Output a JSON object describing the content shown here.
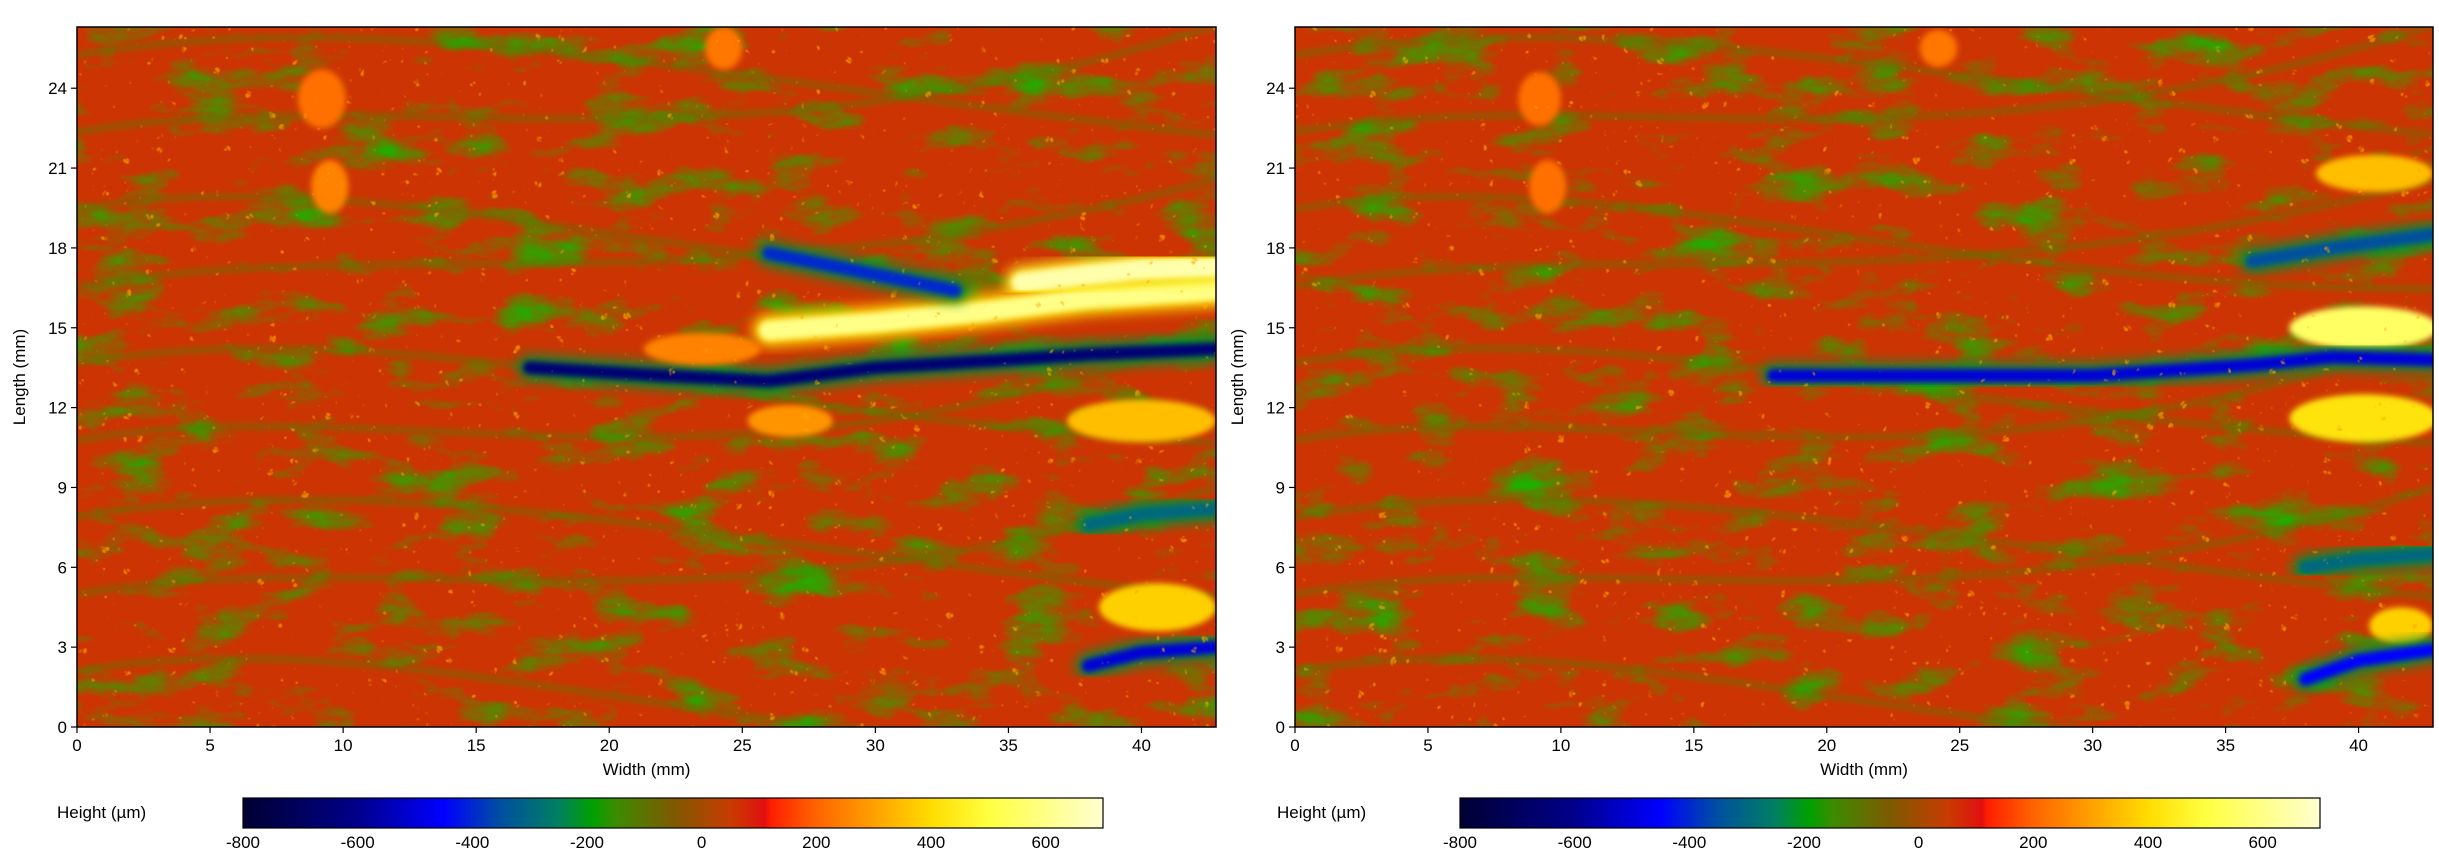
{
  "chart_data": [
    {
      "type": "heatmap",
      "title": "",
      "xlabel": "Width  (mm)",
      "ylabel": "Length  (mm)",
      "xlim": [
        0,
        42.8
      ],
      "ylim": [
        0,
        26.3
      ],
      "x_ticks": [
        0,
        5,
        10,
        15,
        20,
        25,
        30,
        35,
        40
      ],
      "y_ticks": [
        0,
        3,
        6,
        9,
        12,
        15,
        18,
        21,
        24
      ],
      "colorbar": {
        "label": "Height  (µm)",
        "range": [
          -800,
          700
        ],
        "ticks": [
          -800,
          -600,
          -400,
          -200,
          0,
          200,
          400,
          600
        ]
      },
      "features": [
        {
          "kind": "ridge_high",
          "points": [
            [
              26,
              14.9
            ],
            [
              30,
              15.2
            ],
            [
              34,
              15.6
            ],
            [
              38,
              16.1
            ],
            [
              42.8,
              16.4
            ]
          ],
          "value": 600
        },
        {
          "kind": "ridge_high",
          "points": [
            [
              35.5,
              16.7
            ],
            [
              38,
              17.0
            ],
            [
              40,
              17.2
            ],
            [
              42.8,
              17.3
            ]
          ],
          "value": 650
        },
        {
          "kind": "groove_low",
          "points": [
            [
              17,
              13.5
            ],
            [
              22,
              13.2
            ],
            [
              26,
              13.0
            ],
            [
              30,
              13.5
            ],
            [
              35,
              13.8
            ],
            [
              38,
              14.0
            ],
            [
              42.8,
              14.2
            ]
          ],
          "value": -650
        },
        {
          "kind": "groove_low",
          "points": [
            [
              26,
              17.8
            ],
            [
              30,
              17.0
            ],
            [
              33,
              16.4
            ]
          ],
          "value": -400
        },
        {
          "kind": "groove_low",
          "points": [
            [
              38,
              2.3
            ],
            [
              40,
              2.8
            ],
            [
              42.8,
              3.0
            ]
          ],
          "value": -500
        },
        {
          "kind": "groove_low",
          "points": [
            [
              38,
              7.6
            ],
            [
              40,
              8.0
            ],
            [
              42.8,
              8.2
            ]
          ],
          "value": -300
        },
        {
          "kind": "patch_high",
          "x": 23.5,
          "y": 14.2,
          "rx": 2.2,
          "ry": 0.6,
          "value": 250
        },
        {
          "kind": "patch_high",
          "x": 26.8,
          "y": 11.5,
          "rx": 1.6,
          "ry": 0.6,
          "value": 280
        },
        {
          "kind": "patch_high",
          "x": 40.0,
          "y": 11.5,
          "rx": 2.8,
          "ry": 0.8,
          "value": 350
        },
        {
          "kind": "patch_high",
          "x": 40.6,
          "y": 4.5,
          "rx": 2.2,
          "ry": 0.9,
          "value": 380
        },
        {
          "kind": "patch_high",
          "x": 9.5,
          "y": 20.3,
          "rx": 0.7,
          "ry": 1.0,
          "value": 250
        },
        {
          "kind": "patch_high",
          "x": 9.2,
          "y": 23.6,
          "rx": 0.9,
          "ry": 1.1,
          "value": 220
        },
        {
          "kind": "patch_high",
          "x": 24.3,
          "y": 25.5,
          "rx": 0.7,
          "ry": 0.8,
          "value": 230
        }
      ]
    },
    {
      "type": "heatmap",
      "title": "",
      "xlabel": "Width  (mm)",
      "ylabel": "Length  (mm)",
      "xlim": [
        0,
        42.8
      ],
      "ylim": [
        0,
        26.3
      ],
      "x_ticks": [
        0,
        5,
        10,
        15,
        20,
        25,
        30,
        35,
        40
      ],
      "y_ticks": [
        0,
        3,
        6,
        9,
        12,
        15,
        18,
        21,
        24
      ],
      "colorbar": {
        "label": "Height  (µm)",
        "range": [
          -800,
          700
        ],
        "ticks": [
          -800,
          -600,
          -400,
          -200,
          0,
          200,
          400,
          600
        ]
      },
      "features": [
        {
          "kind": "patch_high",
          "x": 40.2,
          "y": 15.0,
          "rx": 2.8,
          "ry": 0.8,
          "value": 550
        },
        {
          "kind": "patch_high",
          "x": 40.2,
          "y": 11.6,
          "rx": 2.8,
          "ry": 0.9,
          "value": 420
        },
        {
          "kind": "patch_high",
          "x": 40.6,
          "y": 20.8,
          "rx": 2.2,
          "ry": 0.7,
          "value": 350
        },
        {
          "kind": "patch_high",
          "x": 41.6,
          "y": 3.8,
          "rx": 1.2,
          "ry": 0.7,
          "value": 380
        },
        {
          "kind": "groove_low",
          "points": [
            [
              18,
              13.2
            ],
            [
              24,
              13.2
            ],
            [
              30,
              13.2
            ],
            [
              36,
              13.6
            ],
            [
              39,
              13.9
            ],
            [
              42.8,
              13.8
            ]
          ],
          "value": -500
        },
        {
          "kind": "groove_low",
          "points": [
            [
              38,
              1.8
            ],
            [
              40,
              2.5
            ],
            [
              42.8,
              2.9
            ]
          ],
          "value": -450
        },
        {
          "kind": "groove_low",
          "points": [
            [
              36,
              17.5
            ],
            [
              39,
              18.0
            ],
            [
              42.8,
              18.5
            ]
          ],
          "value": -350
        },
        {
          "kind": "groove_low",
          "points": [
            [
              38,
              6.0
            ],
            [
              40,
              6.3
            ],
            [
              42.8,
              6.5
            ]
          ],
          "value": -300
        },
        {
          "kind": "patch_high",
          "x": 9.5,
          "y": 20.3,
          "rx": 0.7,
          "ry": 1.0,
          "value": 220
        },
        {
          "kind": "patch_high",
          "x": 9.2,
          "y": 23.6,
          "rx": 0.8,
          "ry": 1.0,
          "value": 220
        },
        {
          "kind": "patch_high",
          "x": 24.2,
          "y": 25.5,
          "rx": 0.7,
          "ry": 0.7,
          "value": 230
        }
      ]
    }
  ],
  "colorbar_stops": [
    {
      "value": -800,
      "color": "#000033"
    },
    {
      "value": -600,
      "color": "#00008b"
    },
    {
      "value": -450,
      "color": "#0000ff"
    },
    {
      "value": -350,
      "color": "#0050a0"
    },
    {
      "value": -250,
      "color": "#008060"
    },
    {
      "value": -190,
      "color": "#00a000"
    },
    {
      "value": -150,
      "color": "#3c8c00"
    },
    {
      "value": -50,
      "color": "#7d5a00"
    },
    {
      "value": 50,
      "color": "#c83c00"
    },
    {
      "value": 110,
      "color": "#e01010"
    },
    {
      "value": 120,
      "color": "#ff1e00"
    },
    {
      "value": 200,
      "color": "#ff6400"
    },
    {
      "value": 300,
      "color": "#ffa000"
    },
    {
      "value": 400,
      "color": "#ffdc00"
    },
    {
      "value": 500,
      "color": "#ffff40"
    },
    {
      "value": 700,
      "color": "#ffffd0"
    }
  ]
}
